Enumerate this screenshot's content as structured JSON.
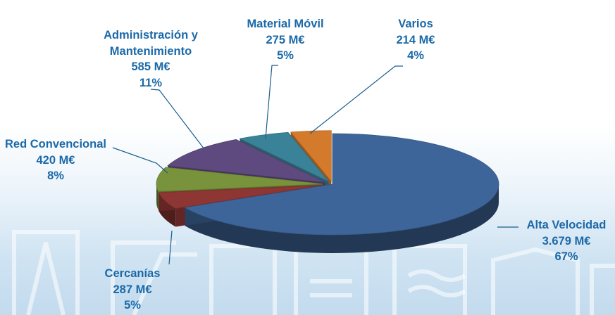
{
  "chart_data": {
    "type": "pie",
    "title": "",
    "unit": "M€",
    "slices": [
      {
        "name": "Alta Velocidad",
        "amount": "3.679 M€",
        "percent_label": "67%",
        "value": 3679,
        "color": "#3e6599"
      },
      {
        "name": "Cercanías",
        "amount": "287 M€",
        "percent_label": "5%",
        "value": 287,
        "color": "#8e3633"
      },
      {
        "name": "Red Convencional",
        "amount": "420 M€",
        "percent_label": "8%",
        "value": 420,
        "color": "#79923c"
      },
      {
        "name_lines": [
          "Administración y",
          "Mantenimiento"
        ],
        "amount": "585 M€",
        "percent_label": "11%",
        "value": 585,
        "color": "#5f4a80"
      },
      {
        "name": "Material Móvil",
        "amount": "275 M€",
        "percent_label": "5%",
        "value": 275,
        "color": "#3a8298"
      },
      {
        "name": "Varios",
        "amount": "214 M€",
        "percent_label": "4%",
        "value": 214,
        "color": "#d37a2c"
      }
    ],
    "leader_color": "#1b5e8c",
    "style": "3d-exploded"
  }
}
